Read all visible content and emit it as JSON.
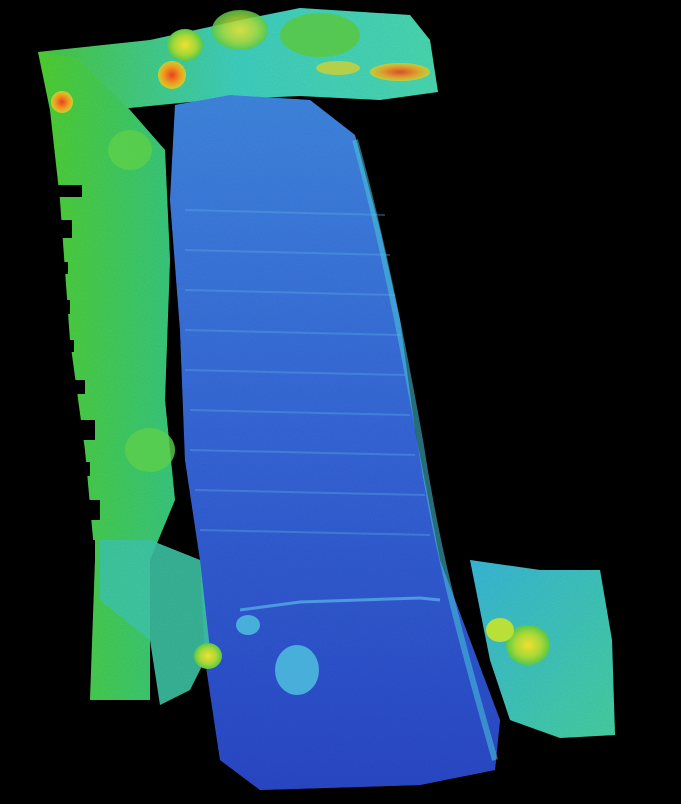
{
  "map": {
    "kind": "elevation-heightmap",
    "background_color": "#000000",
    "color_ramp": [
      "#1f3fbf",
      "#2f6fe0",
      "#3fb0d8",
      "#3fd0a0",
      "#6fd84a",
      "#b8e038",
      "#f0a820",
      "#e0401a"
    ],
    "low_color": "#1f3fbf",
    "high_color": "#e0401a"
  }
}
